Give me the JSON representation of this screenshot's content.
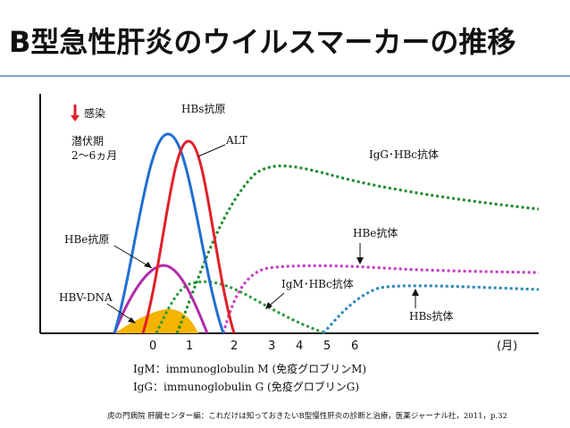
{
  "title": "B型急性肝炎のウイルスマーカーの推移",
  "colors": {
    "hbs_antigen": "#1f6fd1",
    "alt": "#e0202a",
    "hbe_antigen": "#b22aa8",
    "hbv_dna": "#f5b400",
    "igm_hbc": "#2b9a3b",
    "igg_hbc": "#1f8a2e",
    "hbe_antibody": "#c43bc4",
    "hbs_antibody": "#2a86b8",
    "infection_arrow": "#e0202a",
    "title_rule": "#7fa7d6"
  },
  "labels": {
    "infection": "感染",
    "incubation_line1": "潜伏期",
    "incubation_line2": "2～6ヵ月",
    "hbs_antigen": "HBs抗原",
    "alt": "ALT",
    "igg_hbc": "IgG･HBc抗体",
    "hbe_antigen": "HBe抗原",
    "hbe_antibody": "HBe抗体",
    "igm_hbc": "IgM･HBc抗体",
    "hbv_dna": "HBV-DNA",
    "hbs_antibody": "HBs抗体"
  },
  "axis": {
    "ticks": [
      "0",
      "1",
      "2",
      "3",
      "4",
      "5",
      "6"
    ],
    "unit": "(月)"
  },
  "legend": {
    "igm": "IgM：immunoglobulin M (免疫グロブリンM)",
    "igg": "IgG：immunoglobulin G (免疫グロブリンG)"
  },
  "source": "虎の門病院 肝臓センター編：これだけは知っておきたいB型慢性肝炎の診断と治療，医薬ジャーナル社，2011，p.32"
}
